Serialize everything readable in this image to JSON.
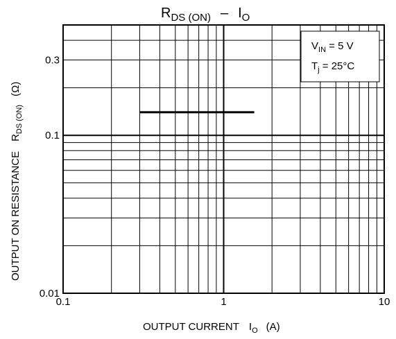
{
  "chart_data": {
    "type": "line",
    "title": {
      "main": "R",
      "sub": "DS (ON)",
      "sep": "–",
      "main2": "I",
      "sub2": "O"
    },
    "xlabel": {
      "text": "OUTPUT  CURRENT",
      "sym": "I",
      "sub": "O",
      "unit": "(A)"
    },
    "ylabel": {
      "text": "OUTPUT ON RESISTANCE",
      "sym": "R",
      "sub": "DS (ON)",
      "unit": "(Ω)"
    },
    "x_scale": "log",
    "y_scale": "log",
    "xlim": [
      0.1,
      10
    ],
    "ylim": [
      0.01,
      0.5
    ],
    "x_ticks": [
      {
        "value": 0.1,
        "label": "0.1"
      },
      {
        "value": 1,
        "label": "1"
      },
      {
        "value": 10,
        "label": "10"
      }
    ],
    "y_ticks": [
      {
        "value": 0.01,
        "label": "0.01"
      },
      {
        "value": 0.1,
        "label": "0.1"
      },
      {
        "value": 0.3,
        "label": "0.3"
      }
    ],
    "grid": true,
    "conditions": {
      "line1": {
        "sym": "V",
        "sub": "IN",
        "rest": " = 5 V"
      },
      "line2": {
        "sym": "T",
        "sub": "j",
        "rest": " = 25°C"
      }
    },
    "series": [
      {
        "x": [
          0.3,
          1.55
        ],
        "y": [
          0.14,
          0.14
        ]
      }
    ]
  }
}
